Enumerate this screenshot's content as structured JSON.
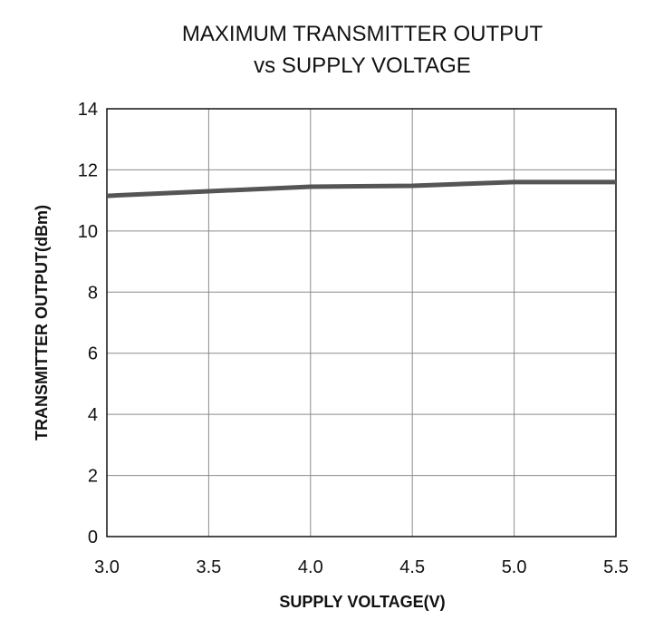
{
  "chart_data": {
    "type": "line",
    "title_lines": [
      "MAXIMUM TRANSMITTER OUTPUT",
      "vs SUPPLY VOLTAGE"
    ],
    "xlabel": "SUPPLY VOLTAGE(V)",
    "ylabel": "TRANSMITTER OUTPUT(dBm)",
    "xlim": [
      3.0,
      5.5
    ],
    "ylim": [
      0,
      14
    ],
    "x_ticks": [
      "3.0",
      "3.5",
      "4.0",
      "4.5",
      "5.0",
      "5.5"
    ],
    "y_ticks": [
      "0",
      "2",
      "4",
      "6",
      "8",
      "10",
      "12",
      "14"
    ],
    "grid": true,
    "legend": "none",
    "series": [
      {
        "color": "#555555",
        "x": [
          3.0,
          3.5,
          4.0,
          4.5,
          5.0,
          5.5
        ],
        "y": [
          11.15,
          11.3,
          11.45,
          11.48,
          11.6,
          11.6
        ]
      }
    ]
  }
}
